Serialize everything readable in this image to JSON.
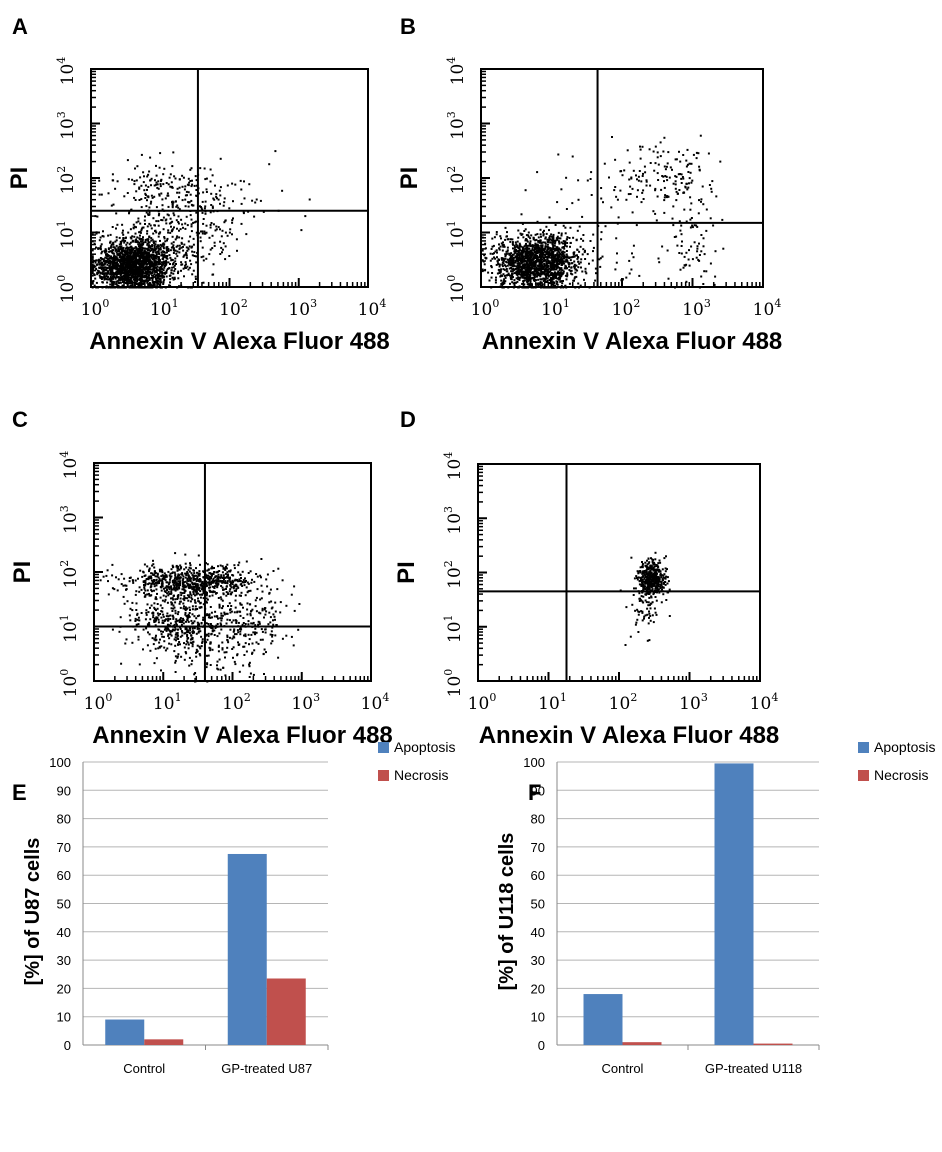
{
  "figure": {
    "chart_data": [
      {
        "type": "scatter",
        "panel": "A",
        "xlabel": "Annexin V Alexa Fluor 488",
        "ylabel": "PI",
        "xscale": "log",
        "yscale": "log",
        "xlim": [
          1,
          10000
        ],
        "ylim": [
          1,
          10000
        ],
        "xticks": [
          "10^0",
          "10^1",
          "10^2",
          "10^3",
          "10^4"
        ],
        "yticks": [
          "10^0",
          "10^1",
          "10^2",
          "10^3",
          "10^4"
        ],
        "quadrant_gate": {
          "x": 35,
          "y": 25
        },
        "population": [
          {
            "center": [
              4,
              2.5
            ],
            "spread": [
              0.28,
              0.22
            ],
            "count": 1700
          },
          {
            "center": [
              8,
              6
            ],
            "spread": [
              0.35,
              0.3
            ],
            "count": 300
          },
          {
            "center": [
              40,
              40
            ],
            "spread": [
              0.45,
              0.4
            ],
            "count": 160
          },
          {
            "center": [
              8,
              60
            ],
            "spread": [
              0.35,
              0.3
            ],
            "count": 130
          },
          {
            "center": [
              50,
              6
            ],
            "spread": [
              0.25,
              0.35
            ],
            "count": 60
          }
        ]
      },
      {
        "type": "scatter",
        "panel": "B",
        "xlabel": "Annexin V Alexa Fluor 488",
        "ylabel": "PI",
        "xscale": "log",
        "yscale": "log",
        "xlim": [
          1,
          10000
        ],
        "ylim": [
          1,
          10000
        ],
        "xticks": [
          "10^0",
          "10^1",
          "10^2",
          "10^3",
          "10^4"
        ],
        "yticks": [
          "10^0",
          "10^1",
          "10^2",
          "10^3",
          "10^4"
        ],
        "quadrant_gate": {
          "x": 45,
          "y": 15
        },
        "population": [
          {
            "center": [
              6,
              3
            ],
            "spread": [
              0.3,
              0.25
            ],
            "count": 1600
          },
          {
            "center": [
              400,
              100
            ],
            "spread": [
              0.4,
              0.35
            ],
            "count": 140
          },
          {
            "center": [
              1000,
              8
            ],
            "spread": [
              0.15,
              0.5
            ],
            "count": 70
          },
          {
            "center": [
              60,
              80
            ],
            "spread": [
              0.6,
              0.5
            ],
            "count": 45
          },
          {
            "center": [
              100,
              3
            ],
            "spread": [
              0.5,
              0.3
            ],
            "count": 30
          }
        ]
      },
      {
        "type": "scatter",
        "panel": "C",
        "xlabel": "Annexin V Alexa Fluor 488",
        "ylabel": "PI",
        "xscale": "log",
        "yscale": "log",
        "xlim": [
          1,
          10000
        ],
        "ylim": [
          1,
          10000
        ],
        "xticks": [
          "10^0",
          "10^1",
          "10^2",
          "10^3",
          "10^4"
        ],
        "yticks": [
          "10^0",
          "10^1",
          "10^2",
          "10^3",
          "10^4"
        ],
        "quadrant_gate": {
          "x": 40,
          "y": 10
        },
        "population": [
          {
            "center": [
              25,
              70
            ],
            "spread": [
              0.45,
              0.15
            ],
            "count": 700
          },
          {
            "center": [
              15,
              12
            ],
            "spread": [
              0.35,
              0.3
            ],
            "count": 450
          },
          {
            "center": [
              150,
              15
            ],
            "spread": [
              0.3,
              0.35
            ],
            "count": 220
          },
          {
            "center": [
              60,
              3
            ],
            "spread": [
              0.5,
              0.3
            ],
            "count": 90
          }
        ]
      },
      {
        "type": "scatter",
        "panel": "D",
        "xlabel": "Annexin V Alexa Fluor 488",
        "ylabel": "PI",
        "xscale": "log",
        "yscale": "log",
        "xlim": [
          1,
          10000
        ],
        "ylim": [
          1,
          10000
        ],
        "xticks": [
          "10^0",
          "10^1",
          "10^2",
          "10^3",
          "10^4"
        ],
        "yticks": [
          "10^0",
          "10^1",
          "10^2",
          "10^3",
          "10^4"
        ],
        "quadrant_gate": {
          "x": 18,
          "y": 45
        },
        "population": [
          {
            "center": [
              280,
              80
            ],
            "spread": [
              0.1,
              0.18
            ],
            "count": 420
          },
          {
            "center": [
              230,
              25
            ],
            "spread": [
              0.15,
              0.3
            ],
            "count": 60
          }
        ]
      },
      {
        "type": "bar",
        "panel": "E",
        "categories": [
          "Control",
          "GP-treated U87"
        ],
        "series": [
          {
            "name": "Apoptosis",
            "color": "#4f81bd",
            "values": [
              9,
              67.5
            ]
          },
          {
            "name": "Necrosis",
            "color": "#c0504d",
            "values": [
              2,
              23.5
            ]
          }
        ],
        "ylabel": "[%] of U87 cells",
        "ylim": [
          0,
          100
        ],
        "yticks": [
          0,
          10,
          20,
          30,
          40,
          50,
          60,
          70,
          80,
          90,
          100
        ],
        "grid": true,
        "legend": "right"
      },
      {
        "type": "bar",
        "panel": "F",
        "categories": [
          "Control",
          "GP-treated U118"
        ],
        "series": [
          {
            "name": "Apoptosis",
            "color": "#4f81bd",
            "values": [
              18,
              99.5
            ]
          },
          {
            "name": "Necrosis",
            "color": "#c0504d",
            "values": [
              1,
              0.5
            ]
          }
        ],
        "ylabel": "[%] of U118 cells",
        "ylim": [
          0,
          100
        ],
        "yticks": [
          0,
          10,
          20,
          30,
          40,
          50,
          60,
          70,
          80,
          90,
          100
        ],
        "grid": true,
        "legend": "right"
      }
    ]
  }
}
